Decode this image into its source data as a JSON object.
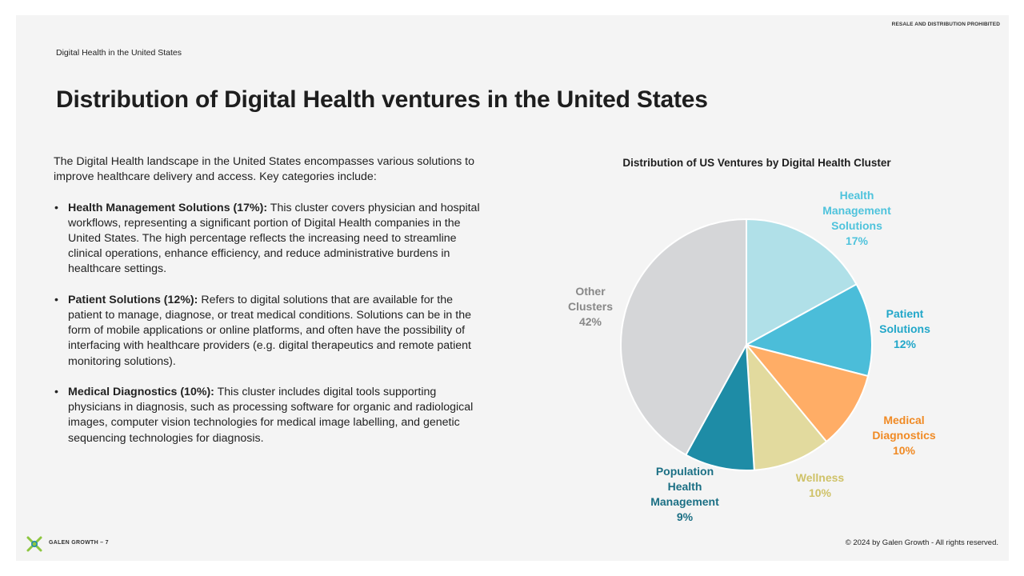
{
  "header": {
    "notice": "RESALE AND DISTRIBUTION PROHIBITED",
    "breadcrumb": "Digital Health in the United States",
    "title": "Distribution of Digital Health ventures in the United States"
  },
  "body": {
    "intro": "The Digital Health landscape in the United States encompasses various solutions to improve healthcare delivery and access. Key categories include:",
    "bullet_glyph": "•",
    "items": [
      {
        "heading": "Health Management Solutions (17%):",
        "text": " This cluster covers physician and hospital workflows, representing a significant portion of Digital Health companies in the United States. The high percentage reflects the increasing need to streamline clinical operations, enhance efficiency, and reduce administrative burdens in healthcare settings."
      },
      {
        "heading": "Patient Solutions (12%):",
        "text": " Refers to digital solutions that are available for the patient to manage, diagnose, or treat medical conditions. Solutions can be in the form of mobile applications or online platforms, and often have the possibility of interfacing with healthcare providers (e.g. digital therapeutics and remote patient monitoring solutions)."
      },
      {
        "heading": "Medical Diagnostics (10%):",
        "text": " This cluster includes digital tools supporting physicians in diagnosis, such as processing software for organic and radiological images, computer vision technologies for medical image labelling, and genetic sequencing technologies for diagnosis."
      }
    ]
  },
  "chart_data": {
    "type": "pie",
    "title": "Distribution of US Ventures by Digital Health Cluster",
    "slices": [
      {
        "label": [
          "Health",
          "Management",
          "Solutions"
        ],
        "value": 17,
        "value_label": "17%",
        "color": "#b0e0e8",
        "label_color": "#4fc3dc"
      },
      {
        "label": [
          "Patient",
          "Solutions"
        ],
        "value": 12,
        "value_label": "12%",
        "color": "#4bbdd9",
        "label_color": "#22a7c9"
      },
      {
        "label": [
          "Medical",
          "Diagnostics"
        ],
        "value": 10,
        "value_label": "10%",
        "color": "#ffad66",
        "label_color": "#f08a24"
      },
      {
        "label": [
          "Wellness"
        ],
        "value": 10,
        "value_label": "10%",
        "color": "#e2da9e",
        "label_color": "#cfc268"
      },
      {
        "label": [
          "Population",
          "Health",
          "Management"
        ],
        "value": 9,
        "value_label": "9%",
        "color": "#1e8ca6",
        "label_color": "#1b6f84"
      },
      {
        "label": [
          "Other",
          "Clusters"
        ],
        "value": 42,
        "value_label": "42%",
        "color": "#d5d6d8",
        "label_color": "#888888"
      }
    ],
    "start_angle": "12 o'clock",
    "direction": "clockwise"
  },
  "footer": {
    "brand": "GALEN GROWTH – 7",
    "copyright": "© 2024 by Galen Growth  - All rights reserved.",
    "logo_colors": [
      "#8dc63f",
      "#1e8ca6"
    ]
  }
}
